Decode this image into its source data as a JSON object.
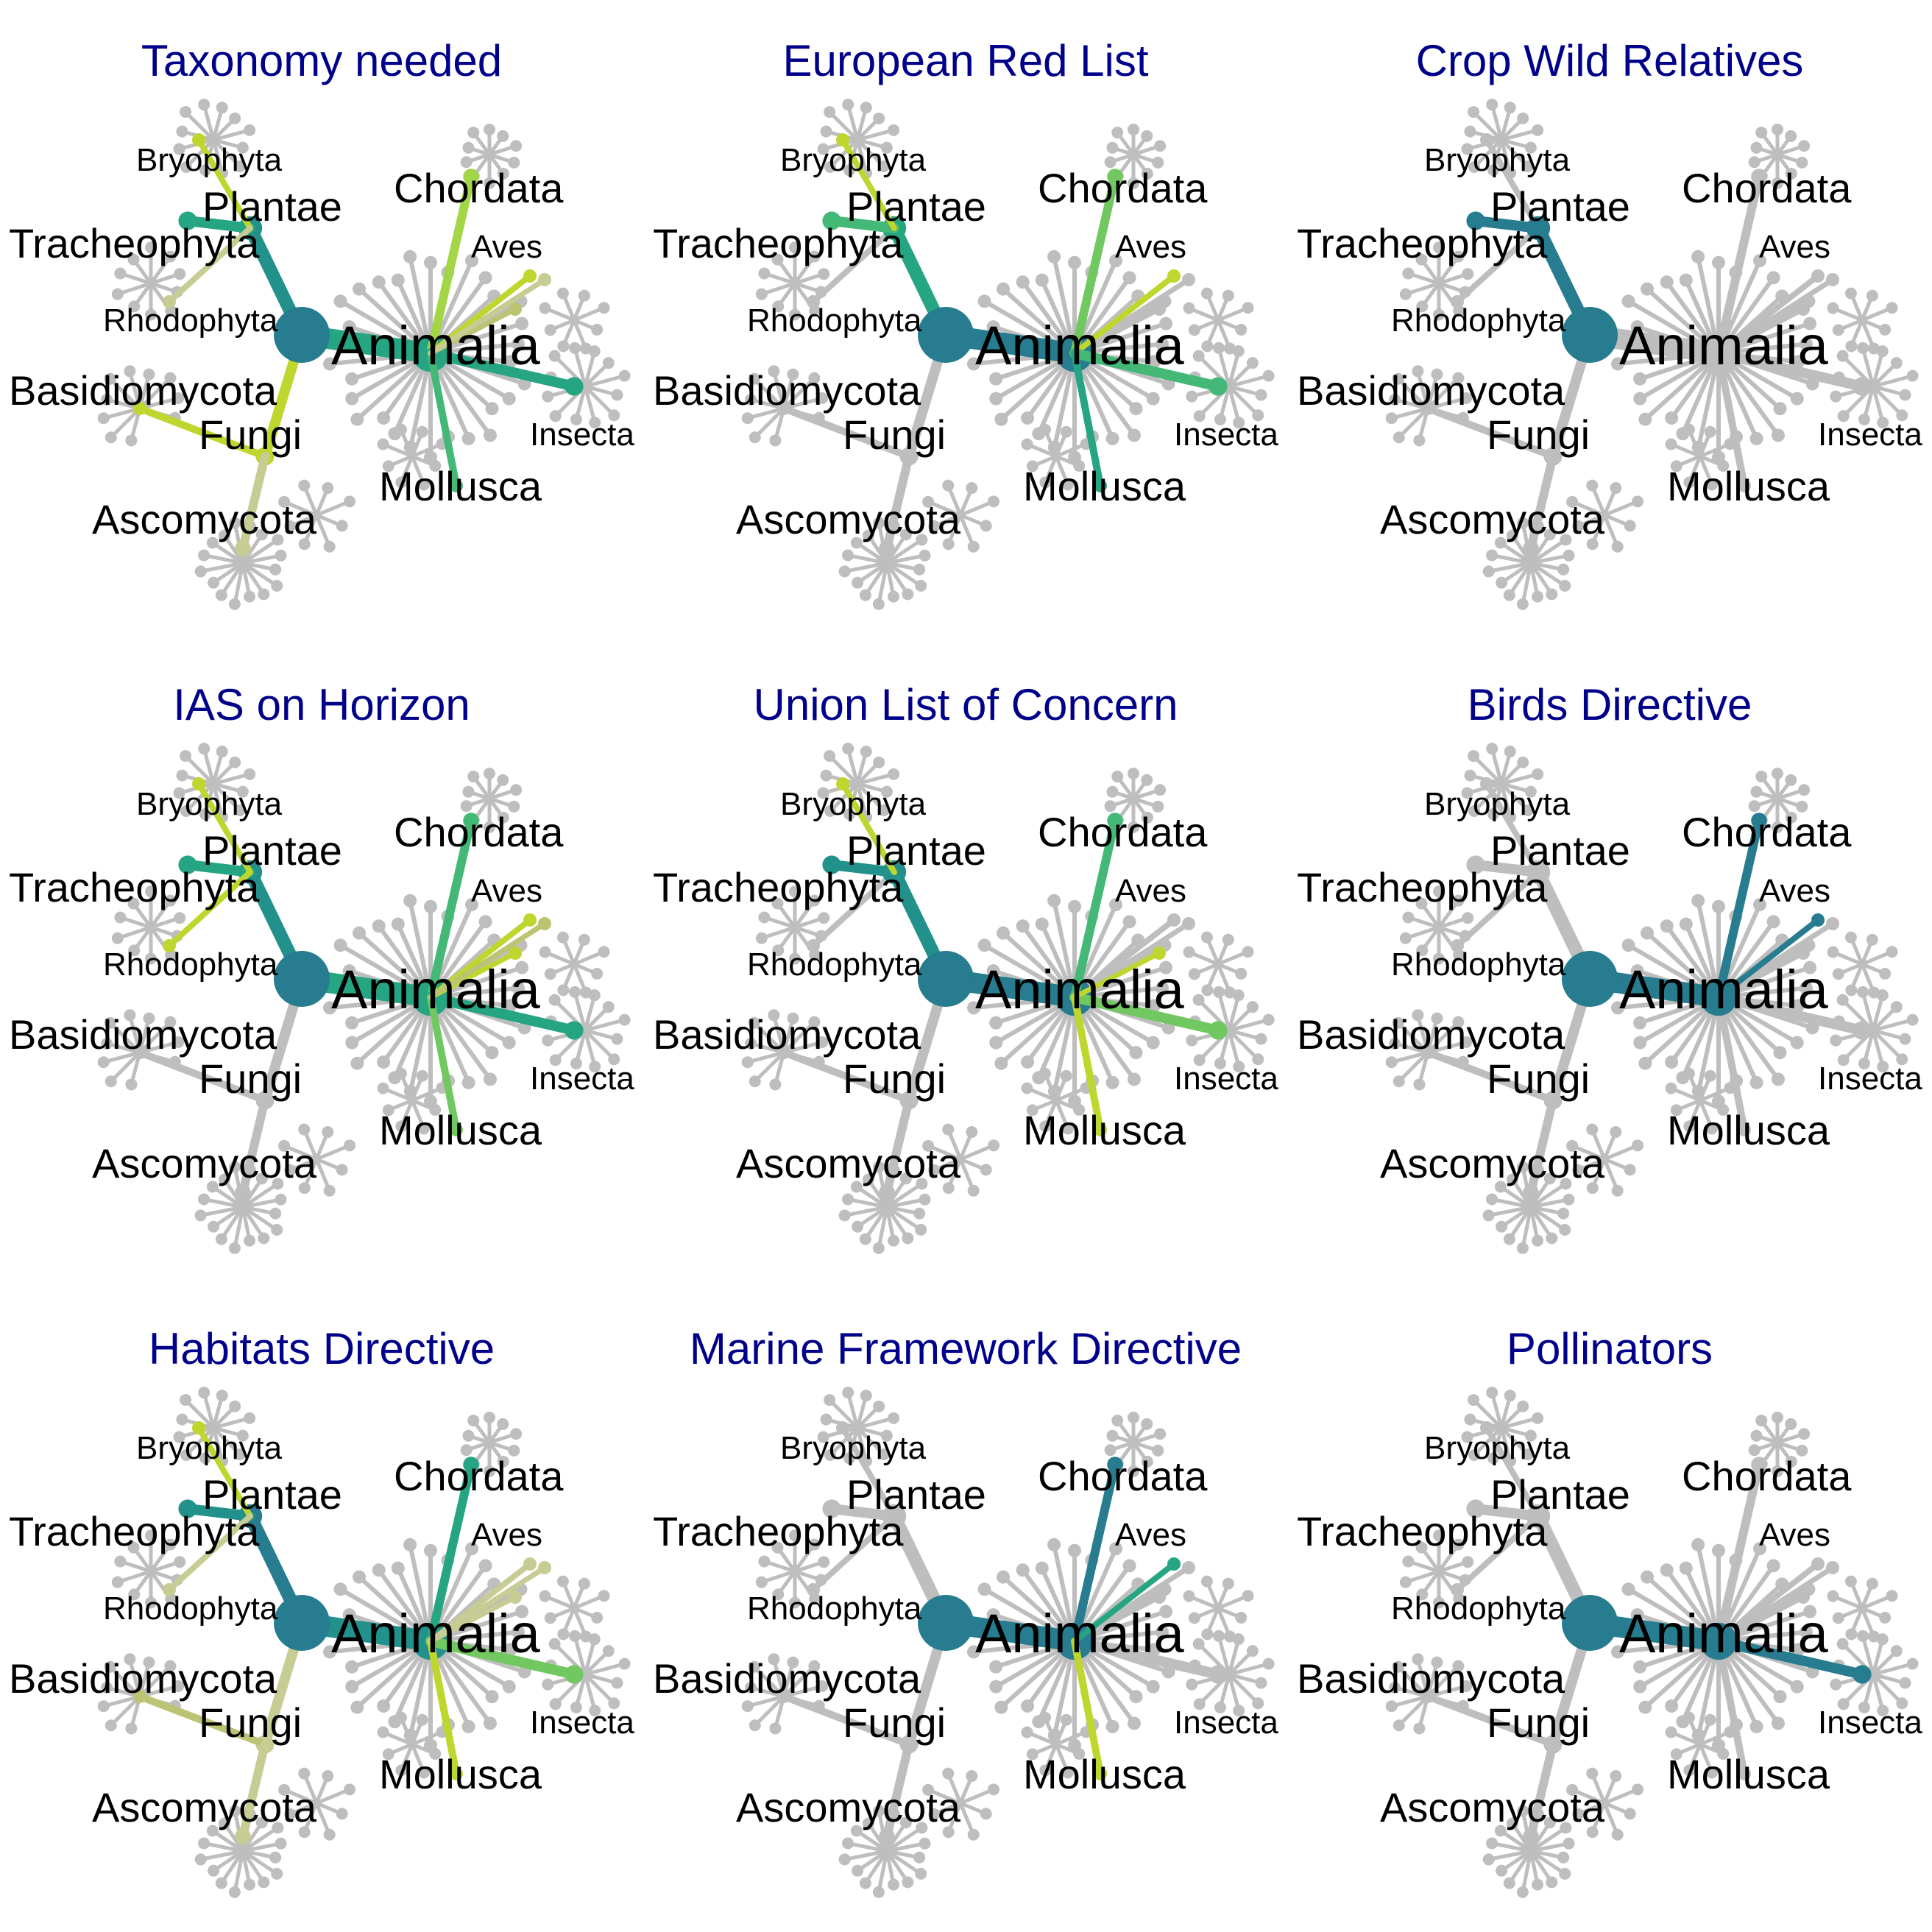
{
  "colors": {
    "title": "#00008b",
    "grey": "#bebebe",
    "scale": [
      "#277c8f",
      "#22918b",
      "#26a583",
      "#44b877",
      "#72c860",
      "#a2d646",
      "#bfd62f",
      "#bcc473",
      "#c6cc93"
    ]
  },
  "labels": {
    "animalia": "Animalia",
    "plantae": "Plantae",
    "fungi": "Fungi",
    "chordata": "Chordata",
    "aves": "Aves",
    "insecta": "Insecta",
    "mollusca": "Mollusca",
    "bryophyta": "Bryophyta",
    "tracheophyta": "Tracheophyta",
    "rhodophyta": "Rhodophyta",
    "basidiomycota": "Basidiomycota",
    "ascomycota": "Ascomycota"
  },
  "panels": [
    {
      "title": "Taxonomy needed",
      "highlight": {
        "plantae": 1,
        "tracheophyta": 2,
        "bryophyta": 6,
        "rhodophyta": 8,
        "fungi": 6,
        "basidiomycota": 6,
        "ascomycota": 8,
        "animalia": 2,
        "chordata": 5,
        "aves": 6,
        "insecta": 2,
        "mollusca": 3,
        "extra1": 7,
        "extra2": 8
      }
    },
    {
      "title": "European Red List",
      "highlight": {
        "plantae": 2,
        "tracheophyta": 3,
        "bryophyta": 6,
        "animalia": 0,
        "chordata": 4,
        "aves": 6,
        "insecta": 3,
        "mollusca": 2
      }
    },
    {
      "title": "Crop Wild Relatives",
      "highlight": {
        "plantae": 0,
        "tracheophyta": 0
      }
    },
    {
      "title": "IAS on Horizon",
      "highlight": {
        "plantae": 1,
        "tracheophyta": 2,
        "bryophyta": 6,
        "rhodophyta": 6,
        "animalia": 2,
        "chordata": 3,
        "aves": 6,
        "insecta": 2,
        "mollusca": 4,
        "extra1": 6,
        "extra2": 7
      }
    },
    {
      "title": "Union List of Concern",
      "highlight": {
        "plantae": 1,
        "tracheophyta": 1,
        "bryophyta": 6,
        "animalia": 0,
        "chordata": 3,
        "insecta": 4,
        "mollusca": 6,
        "extra1": 6
      }
    },
    {
      "title": "Birds Directive",
      "highlight": {
        "animalia": 0,
        "chordata": 0,
        "aves": 0
      }
    },
    {
      "title": "Habitats Directive",
      "highlight": {
        "plantae": 0,
        "tracheophyta": 1,
        "bryophyta": 6,
        "rhodophyta": 8,
        "fungi": 8,
        "ascomycota": 8,
        "basidiomycota": 7,
        "animalia": 1,
        "chordata": 2,
        "aves": 8,
        "insecta": 4,
        "mollusca": 6,
        "extra1": 8,
        "extra2": 8
      }
    },
    {
      "title": "Marine Framework Directive",
      "highlight": {
        "animalia": 0,
        "chordata": 0,
        "aves": 2,
        "mollusca": 6
      }
    },
    {
      "title": "Pollinators",
      "highlight": {
        "animalia": 0,
        "insecta": 0
      }
    }
  ]
}
